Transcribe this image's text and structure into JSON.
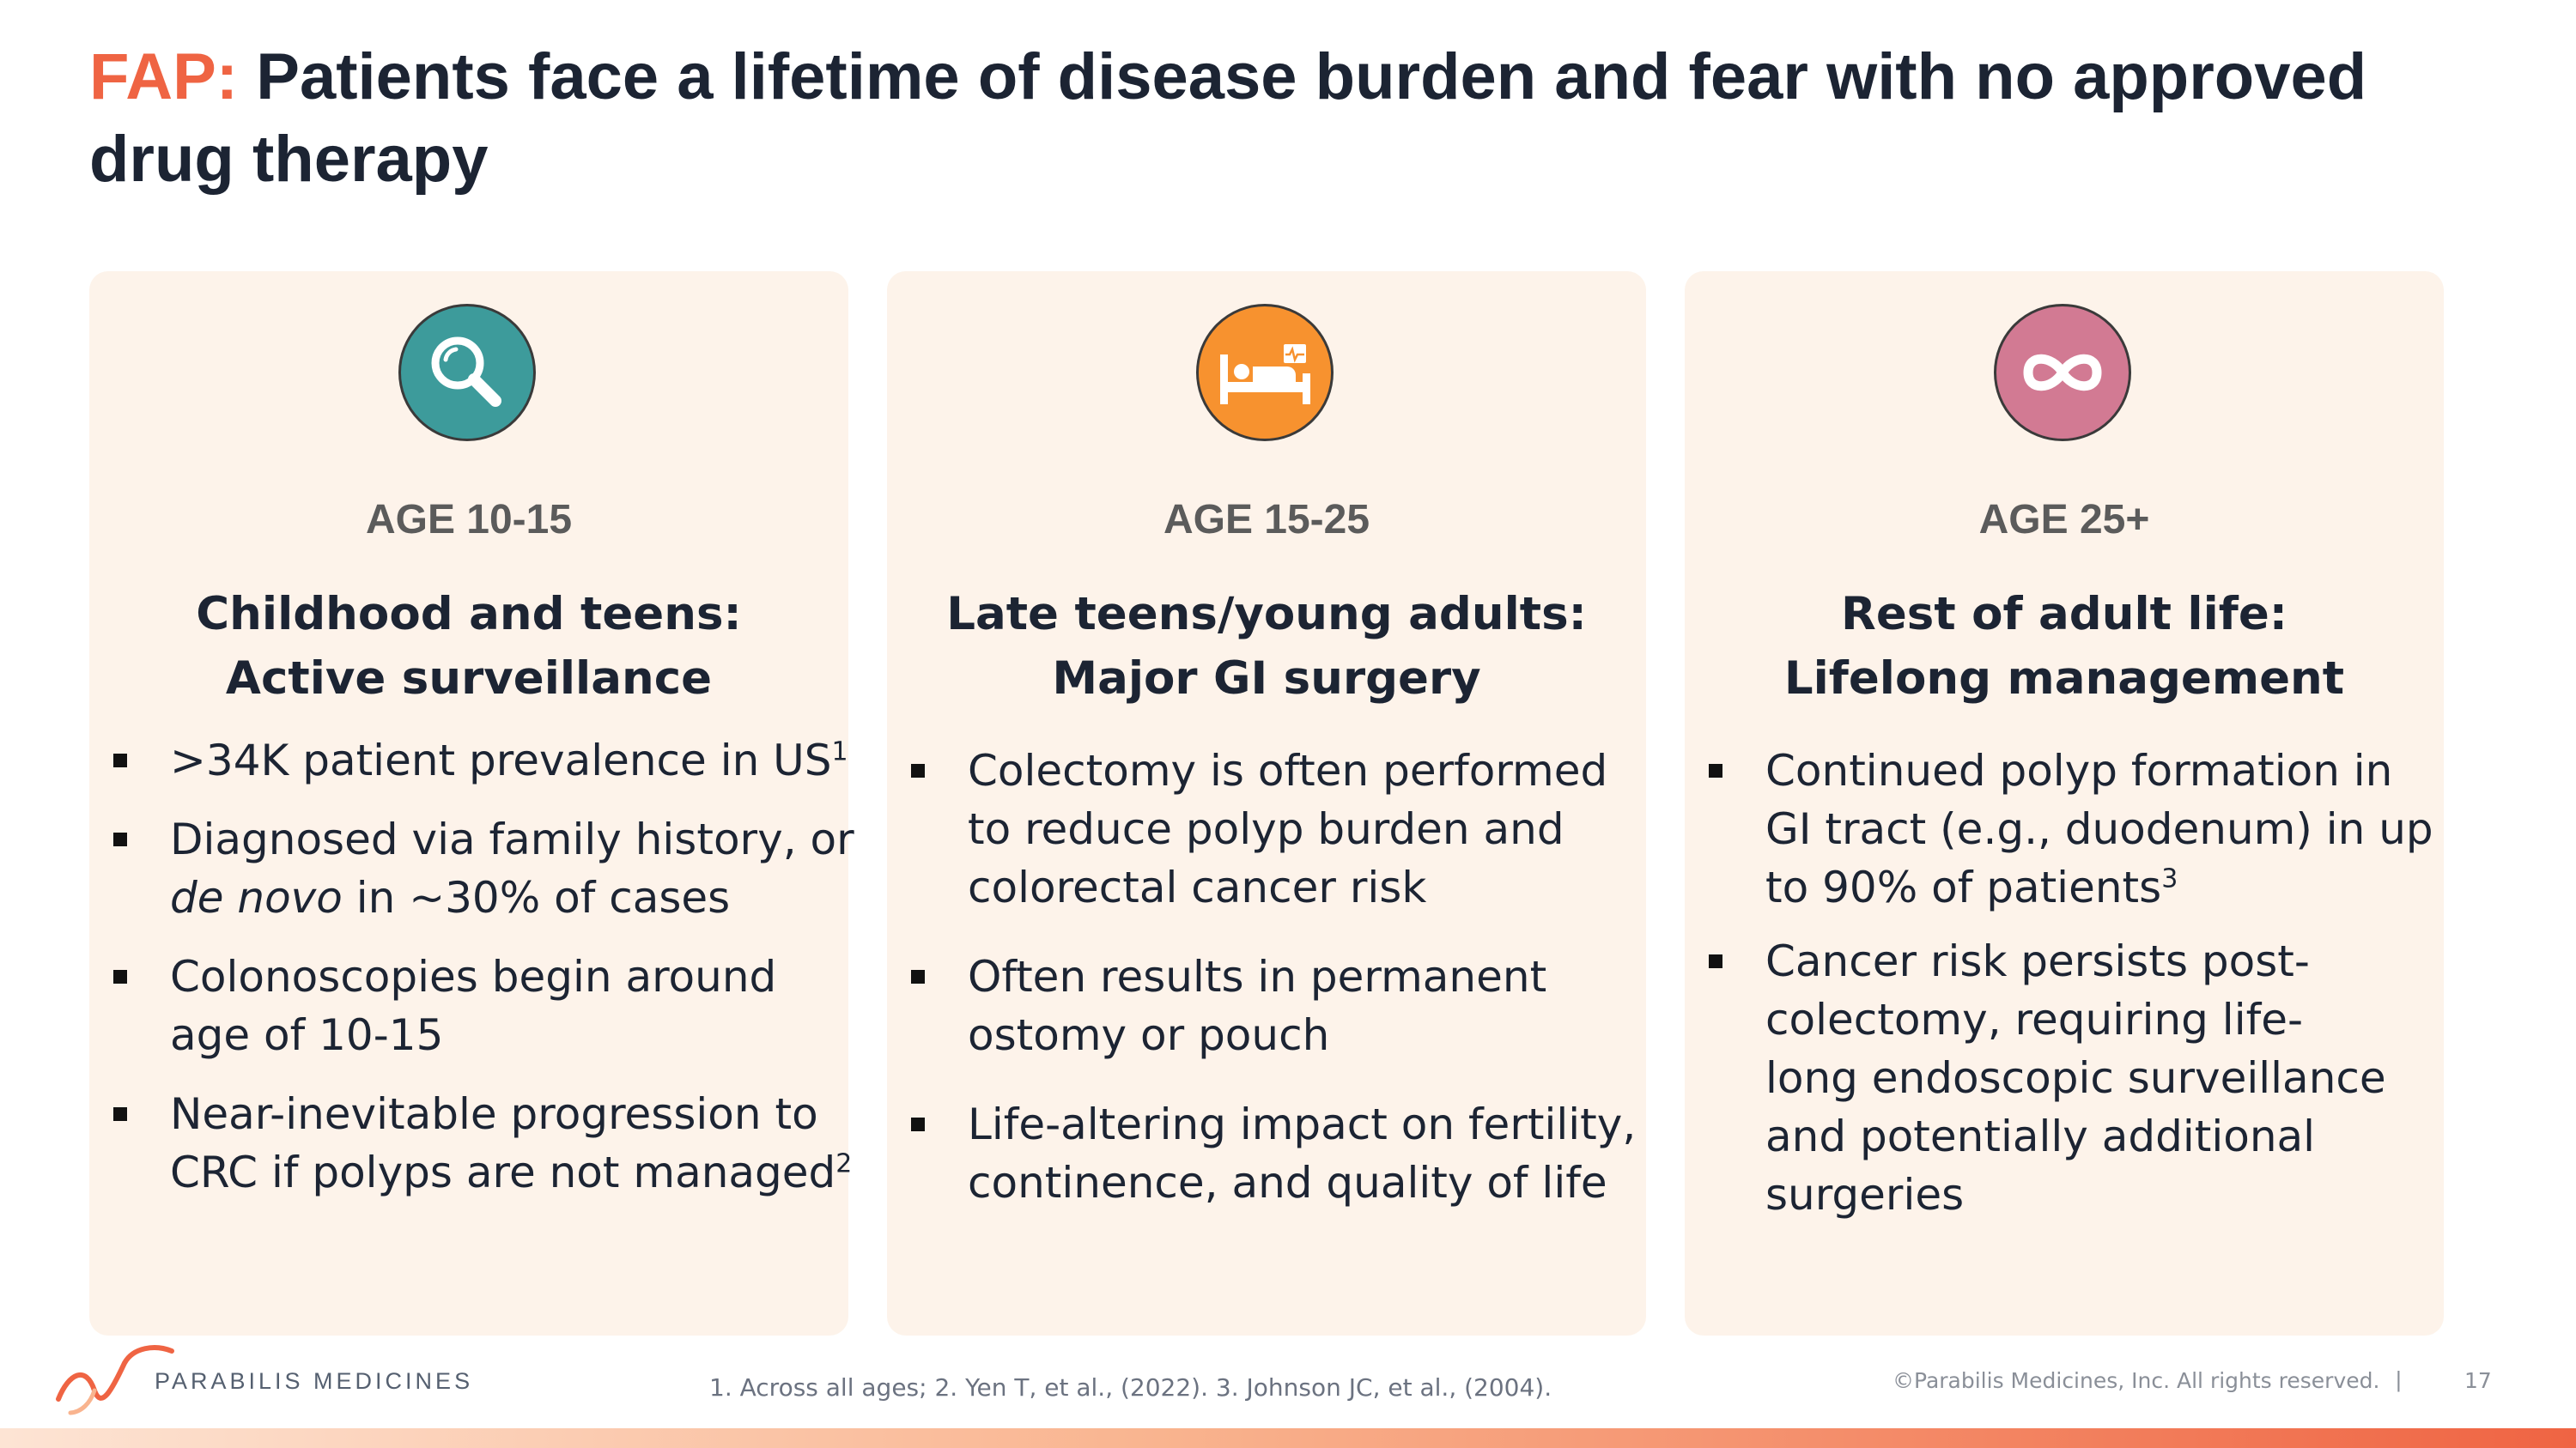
{
  "title": {
    "prefix": "FAP:",
    "line1": "Patients face a lifetime of disease burden and fear with no approved",
    "line2": "drug therapy"
  },
  "colors": {
    "accent": "#ef6443",
    "card_bg": "#fdf3ea",
    "teal": "#3d9b9b",
    "orange": "#f7922f",
    "pink": "#d27a93"
  },
  "cards": [
    {
      "icon": "magnifier-icon",
      "age": "AGE 10-15",
      "heading": [
        "Childhood and teens:",
        "Active surveillance"
      ],
      "bullets": [
        {
          "lines": [
            ">34K patient prevalence in US"
          ],
          "sup": "1"
        },
        {
          "lines": [
            " Diagnosed via family history, or"
          ],
          "italic": "de novo",
          "rest": " in ~30% of cases"
        },
        {
          "lines": [
            "Colonoscopies begin around",
            "age of 10-15"
          ]
        },
        {
          "lines": [
            "Near-inevitable progression to",
            "CRC if polyps are not managed"
          ],
          "sup": "2"
        }
      ]
    },
    {
      "icon": "hospital-bed-icon",
      "age": "AGE 15-25",
      "heading": [
        "Late teens/young adults:",
        "Major GI surgery"
      ],
      "bullets": [
        {
          "lines": [
            "Colectomy is often performed",
            "to reduce polyp burden and",
            "colorectal cancer risk"
          ]
        },
        {
          "lines": [
            "Often results in permanent",
            "ostomy or pouch"
          ]
        },
        {
          "lines": [
            "Life-altering impact on fertility,",
            "continence, and quality of life"
          ]
        }
      ]
    },
    {
      "icon": "infinity-icon",
      "age": "AGE 25+",
      "heading": [
        "Rest of adult life:",
        "Lifelong management"
      ],
      "bullets": [
        {
          "lines": [
            "Continued polyp formation in",
            "GI tract (e.g., duodenum) in up",
            "to 90% of patients"
          ],
          "sup": "3"
        },
        {
          "lines": [
            "Cancer risk persists post-",
            "colectomy, requiring life-",
            "long endoscopic surveillance",
            "and potentially additional",
            "surgeries"
          ]
        }
      ]
    }
  ],
  "footer": {
    "brand": "PARABILIS MEDICINES",
    "references": "1. Across all ages; 2. Yen T, et al., (2022). 3. Johnson JC, et al., (2004).",
    "copyright": "©Parabilis Medicines, Inc.  All rights reserved.",
    "separator": "|",
    "page": "17"
  }
}
